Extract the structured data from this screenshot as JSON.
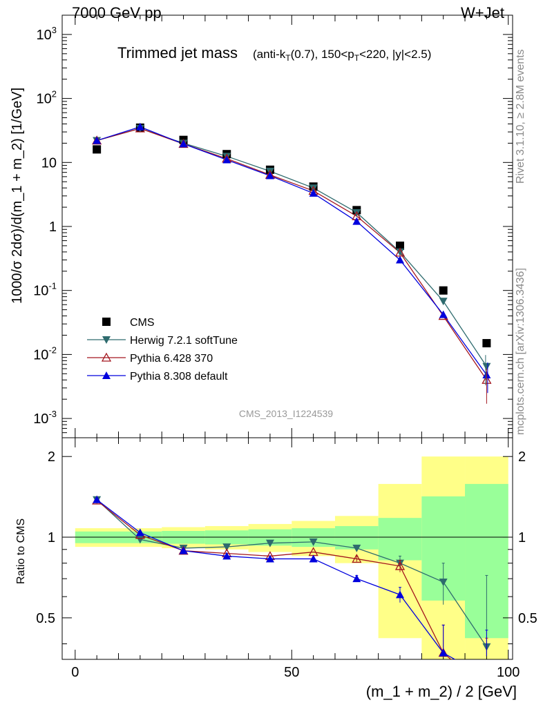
{
  "header": {
    "left": "7000 GeV pp",
    "right": "W+Jet"
  },
  "side": {
    "rivet": "Rivet 3.1.10, ≥ 2.8M events",
    "mcplots": "mcplots.cern.ch [arXiv:1306.3436]"
  },
  "chart_data": {
    "type": "scatter",
    "title": "Trimmed jet mass",
    "title_suffix": "(anti-kT(0.7), 150<pT<220, |y|<2.5)",
    "analysis_tag": "CMS_2013_I1224539",
    "xlabel": "(m_1 + m_2) / 2 [GeV]",
    "ylabel": "1000/σ 2dσ)/d(m_1 + m_2) [1/GeV]",
    "ratio_ylabel": "Ratio to CMS",
    "xlim": [
      -3,
      101
    ],
    "ylim": [
      0.0005,
      2000
    ],
    "yscale": "log",
    "ratio_ylim": [
      0.35,
      2.35
    ],
    "x_ticks": [
      "0",
      "50",
      "100"
    ],
    "y_ticks": [
      "10^-3",
      "10^-2",
      "10^-1",
      "1",
      "10",
      "10^2",
      "10^3"
    ],
    "ratio_ticks": [
      "0.5",
      "1",
      "2"
    ],
    "legend_position": "bottom-left",
    "x": [
      5,
      15,
      25,
      35,
      45,
      55,
      65,
      75,
      85,
      95
    ],
    "series": [
      {
        "name": "CMS",
        "color": "#000000",
        "marker": "square",
        "values": [
          16,
          35,
          22.5,
          13.5,
          7.7,
          4.2,
          1.8,
          0.5,
          0.1,
          0.015
        ],
        "band_green": [
          0.05,
          0.05,
          0.055,
          0.06,
          0.07,
          0.08,
          0.1,
          0.18,
          0.42,
          0.58
        ],
        "band_yellow": [
          0.08,
          0.08,
          0.09,
          0.1,
          0.12,
          0.15,
          0.2,
          0.58,
          1.0,
          1.0
        ]
      },
      {
        "name": "Herwig 7.2.1 softTune",
        "color": "#2e6b6e",
        "marker": "triangle-down",
        "values": [
          22,
          34,
          20,
          12.5,
          7.3,
          4.0,
          1.65,
          0.4,
          0.068,
          0.0065
        ],
        "ratio": [
          1.38,
          0.98,
          0.91,
          0.92,
          0.95,
          0.96,
          0.91,
          0.8,
          0.68,
          0.39
        ],
        "ratio_err": [
          0.02,
          0.01,
          0.01,
          0.01,
          0.01,
          0.01,
          0.02,
          0.05,
          0.12,
          0.33
        ]
      },
      {
        "name": "Pythia 6.428 370",
        "color": "#a3151d",
        "marker": "triangle-up-open",
        "values": [
          22,
          34,
          19.5,
          11.5,
          6.4,
          3.6,
          1.45,
          0.39,
          0.04,
          0.004
        ],
        "ratio": [
          1.37,
          1.02,
          0.89,
          0.87,
          0.85,
          0.88,
          0.83,
          0.78,
          0.37,
          0.27
        ],
        "ratio_err": [
          0.02,
          0.01,
          0.01,
          0.01,
          0.01,
          0.01,
          0.02,
          0.04,
          0.1,
          0.15
        ]
      },
      {
        "name": "Pythia 8.308 default",
        "color": "#0000dd",
        "marker": "triangle-up",
        "values": [
          22,
          36,
          19.5,
          11,
          6.2,
          3.3,
          1.2,
          0.3,
          0.042,
          0.0048
        ],
        "ratio": [
          1.38,
          1.04,
          0.89,
          0.85,
          0.83,
          0.83,
          0.7,
          0.61,
          0.37,
          0.3
        ],
        "ratio_err": [
          0.02,
          0.01,
          0.01,
          0.01,
          0.01,
          0.01,
          0.02,
          0.04,
          0.1,
          0.15
        ]
      }
    ]
  }
}
